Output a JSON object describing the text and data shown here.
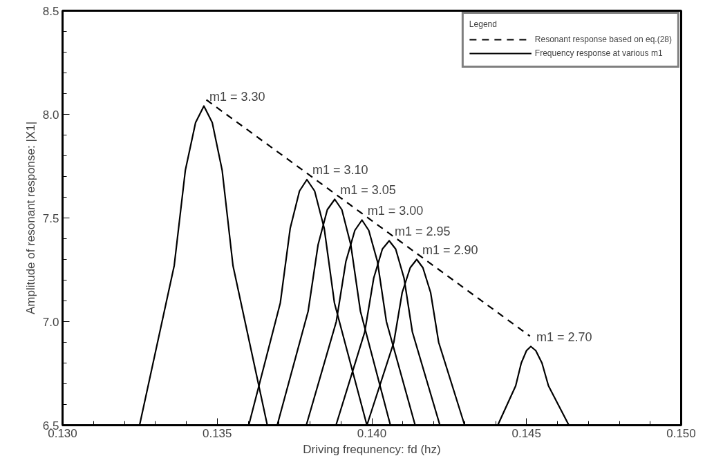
{
  "chart_data": {
    "type": "line",
    "xlabel": "Driving frequnency: fd (hz)",
    "ylabel": "Amplitude of resonant response: |X1|",
    "legend_title": "Legend",
    "legend": "top right",
    "grid": false,
    "xlim": [
      0.13,
      0.15
    ],
    "xticks": [
      {
        "value": 0.13,
        "label": "0.130"
      },
      {
        "value": 0.135,
        "label": "0.135"
      },
      {
        "value": 0.14,
        "label": "0.140"
      },
      {
        "value": 0.145,
        "label": "0.145"
      },
      {
        "value": 0.15,
        "label": "0.150"
      }
    ],
    "ylim": [
      6.5,
      8.5
    ],
    "yticks": [
      6.5,
      {
        "value": 7.0,
        "label": "7.0"
      },
      7.5,
      {
        "value": 8.0,
        "label": "8.0"
      },
      8.5
    ],
    "series": [
      {
        "name": "Resonant response based on eq.(28)",
        "color": "#000000",
        "line_style": "dashed",
        "x": [
          0.13465,
          0.14511
        ],
        "values": [
          8.07,
          6.93
        ]
      },
      {
        "name": "Frequency response at various m1",
        "color": "#000000",
        "line_style": "solid",
        "x": [
          0.13249,
          0.13361,
          0.13397,
          0.1343,
          0.13457,
          0.13484,
          0.13516,
          0.13551,
          0.13662
        ],
        "values": [
          6.5,
          7.27,
          7.73,
          7.96,
          8.04,
          7.96,
          7.73,
          7.27,
          6.5
        ]
      },
      {
        "color": "#000000",
        "line_style": "solid",
        "x": [
          0.13602,
          0.13704,
          0.13736,
          0.13766,
          0.1379,
          0.13815,
          0.13846,
          0.13879,
          0.13984
        ],
        "values": [
          6.5,
          7.09,
          7.45,
          7.63,
          7.685,
          7.63,
          7.45,
          7.09,
          6.5
        ]
      },
      {
        "color": "#000000",
        "line_style": "solid",
        "x": [
          0.13694,
          0.13794,
          0.13826,
          0.13856,
          0.1388,
          0.13903,
          0.13932,
          0.13963,
          0.1406
        ],
        "values": [
          6.5,
          7.05,
          7.37,
          7.54,
          7.59,
          7.54,
          7.37,
          7.05,
          6.5
        ]
      },
      {
        "color": "#000000",
        "line_style": "solid",
        "x": [
          0.13788,
          0.13885,
          0.13916,
          0.13945,
          0.13968,
          0.1399,
          0.14018,
          0.14047,
          0.1414
        ],
        "values": [
          6.5,
          7.0,
          7.29,
          7.44,
          7.49,
          7.44,
          7.29,
          7.0,
          6.5
        ]
      },
      {
        "color": "#000000",
        "line_style": "solid",
        "x": [
          0.13884,
          0.13977,
          0.14006,
          0.14034,
          0.14056,
          0.14077,
          0.14104,
          0.14131,
          0.1422
        ],
        "values": [
          6.5,
          6.95,
          7.21,
          7.35,
          7.39,
          7.35,
          7.21,
          6.95,
          6.5
        ]
      },
      {
        "color": "#000000",
        "line_style": "solid",
        "x": [
          0.13984,
          0.14071,
          0.14098,
          0.14124,
          0.14145,
          0.14165,
          0.1419,
          0.14216,
          0.143
        ],
        "values": [
          6.5,
          6.9,
          7.14,
          7.26,
          7.3,
          7.26,
          7.14,
          6.9,
          6.5
        ]
      },
      {
        "color": "#000000",
        "line_style": "solid",
        "x": [
          0.14407,
          0.14465,
          0.14483,
          0.145,
          0.14514,
          0.1453,
          0.1455,
          0.14571,
          0.14637
        ],
        "values": [
          6.5,
          6.69,
          6.8,
          6.86,
          6.88,
          6.86,
          6.8,
          6.69,
          6.5
        ]
      }
    ],
    "annotations": [
      {
        "text": "m1 = 3.30",
        "x": 0.13457,
        "y": 8.04
      },
      {
        "text": "m1 = 3.10",
        "x": 0.1379,
        "y": 7.685
      },
      {
        "text": "m1 = 3.05",
        "x": 0.1388,
        "y": 7.59
      },
      {
        "text": "m1 = 3.00",
        "x": 0.13968,
        "y": 7.49
      },
      {
        "text": "m1 = 2.95",
        "x": 0.14056,
        "y": 7.39
      },
      {
        "text": "m1 = 2.90",
        "x": 0.14145,
        "y": 7.3
      },
      {
        "text": "m1 = 2.70",
        "x": 0.14514,
        "y": 6.88
      }
    ]
  }
}
